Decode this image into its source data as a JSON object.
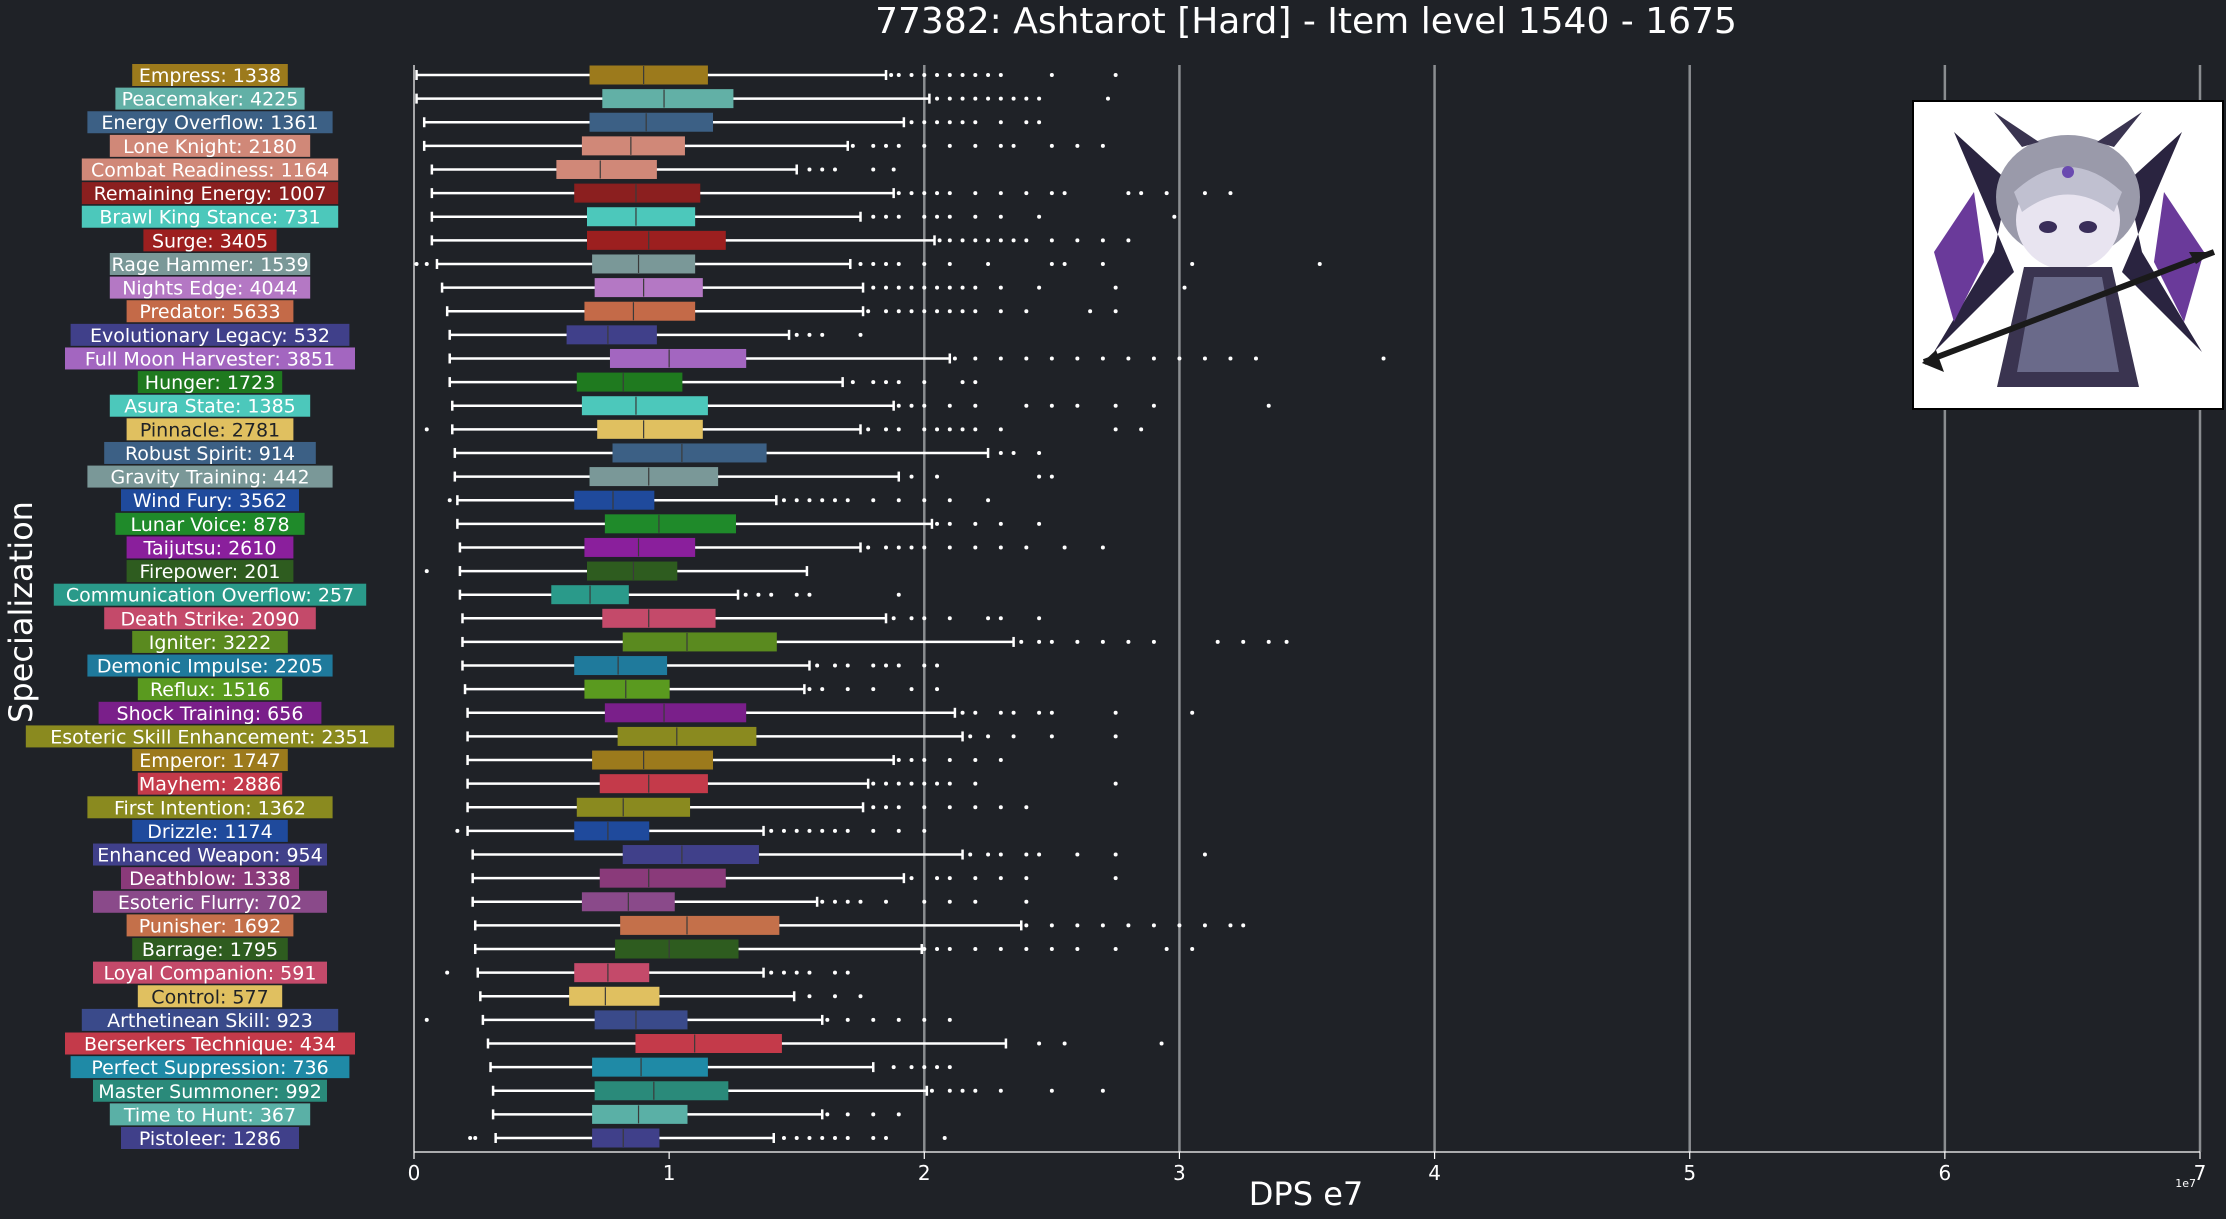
{
  "chart_data": {
    "type": "boxplot",
    "orientation": "horizontal",
    "title": "77382: Ashtarot [Hard] - Item level 1540 - 1675",
    "xlabel": "DPS e7",
    "ylabel": "Specialization",
    "x_scale_offset": "1e7",
    "xlim": [
      0,
      7
    ],
    "xticks": [
      "0",
      "1",
      "2",
      "3",
      "4",
      "5",
      "6",
      "7"
    ],
    "grid": "vertical gridlines at 2,3,4,5,6,7",
    "categories": [
      {
        "label": "Empress: 1338",
        "color": "#9c7a1c",
        "whislo": 0.01,
        "q1": 0.69,
        "med": 0.9,
        "q3": 1.15,
        "whishi": 1.85,
        "fliers": [
          1.87,
          1.9,
          1.95,
          2.0,
          2.05,
          2.1,
          2.15,
          2.2,
          2.25,
          2.3,
          2.5,
          2.75
        ]
      },
      {
        "label": "Peacemaker: 4225",
        "color": "#62b0a6",
        "whislo": 0.01,
        "q1": 0.74,
        "med": 0.98,
        "q3": 1.25,
        "whishi": 2.02,
        "fliers": [
          2.05,
          2.1,
          2.15,
          2.2,
          2.25,
          2.3,
          2.35,
          2.4,
          2.45,
          2.72
        ]
      },
      {
        "label": "Energy Overflow: 1361",
        "color": "#3c6085",
        "whislo": 0.04,
        "q1": 0.69,
        "med": 0.91,
        "q3": 1.17,
        "whishi": 1.92,
        "fliers": [
          1.95,
          2.0,
          2.05,
          2.1,
          2.15,
          2.2,
          2.3,
          2.4,
          2.45
        ]
      },
      {
        "label": "Lone Knight: 2180",
        "color": "#d08878",
        "whislo": 0.04,
        "q1": 0.66,
        "med": 0.85,
        "q3": 1.06,
        "whishi": 1.7,
        "fliers": [
          1.72,
          1.8,
          1.85,
          1.9,
          2.0,
          2.1,
          2.2,
          2.3,
          2.35,
          2.5,
          2.6,
          2.7
        ]
      },
      {
        "label": "Combat Readiness: 1164",
        "color": "#d08878",
        "whislo": 0.07,
        "q1": 0.56,
        "med": 0.73,
        "q3": 0.95,
        "whishi": 1.5,
        "fliers": [
          1.55,
          1.6,
          1.65,
          1.8,
          1.88
        ]
      },
      {
        "label": "Remaining Energy: 1007",
        "color": "#8b1f1f",
        "whislo": 0.07,
        "q1": 0.63,
        "med": 0.87,
        "q3": 1.12,
        "whishi": 1.88,
        "fliers": [
          1.9,
          1.95,
          2.0,
          2.05,
          2.1,
          2.2,
          2.3,
          2.4,
          2.5,
          2.55,
          2.8,
          2.85,
          2.95,
          3.1,
          3.2
        ]
      },
      {
        "label": "Brawl King Stance: 731",
        "color": "#4cc8bb",
        "whislo": 0.07,
        "q1": 0.68,
        "med": 0.87,
        "q3": 1.1,
        "whishi": 1.75,
        "fliers": [
          1.8,
          1.85,
          1.9,
          2.0,
          2.05,
          2.1,
          2.2,
          2.3,
          2.45,
          2.98
        ]
      },
      {
        "label": "Surge: 3405",
        "color": "#9c1f1f",
        "whislo": 0.07,
        "q1": 0.68,
        "med": 0.92,
        "q3": 1.22,
        "whishi": 2.04,
        "fliers": [
          2.06,
          2.1,
          2.15,
          2.2,
          2.25,
          2.3,
          2.35,
          2.4,
          2.5,
          2.6,
          2.7,
          2.8
        ]
      },
      {
        "label": "Rage Hammer: 1539",
        "color": "#7a9898",
        "whislo": 0.09,
        "q1": 0.7,
        "med": 0.88,
        "q3": 1.1,
        "whishi": 1.71,
        "fliers": [
          0.01,
          0.05,
          1.75,
          1.8,
          1.85,
          1.9,
          2.0,
          2.1,
          2.25,
          2.5,
          2.55,
          2.7,
          3.05,
          3.55
        ]
      },
      {
        "label": "Nights Edge: 4044",
        "color": "#b478c4",
        "whislo": 0.11,
        "q1": 0.71,
        "med": 0.9,
        "q3": 1.13,
        "whishi": 1.76,
        "fliers": [
          1.8,
          1.85,
          1.9,
          1.95,
          2.0,
          2.05,
          2.1,
          2.15,
          2.2,
          2.3,
          2.45,
          2.75,
          3.02
        ]
      },
      {
        "label": "Predator: 5633",
        "color": "#c46a48",
        "whislo": 0.13,
        "q1": 0.67,
        "med": 0.86,
        "q3": 1.1,
        "whishi": 1.76,
        "fliers": [
          1.78,
          1.85,
          1.9,
          1.95,
          2.0,
          2.05,
          2.1,
          2.15,
          2.2,
          2.3,
          2.4,
          2.65,
          2.75
        ]
      },
      {
        "label": "Evolutionary Legacy: 532",
        "color": "#40408a",
        "whislo": 0.14,
        "q1": 0.6,
        "med": 0.76,
        "q3": 0.95,
        "whishi": 1.47,
        "fliers": [
          1.5,
          1.55,
          1.6,
          1.75
        ]
      },
      {
        "label": "Full Moon Harvester: 3851",
        "color": "#a366c0",
        "whislo": 0.14,
        "q1": 0.77,
        "med": 1.0,
        "q3": 1.3,
        "whishi": 2.1,
        "fliers": [
          2.12,
          2.2,
          2.3,
          2.4,
          2.5,
          2.6,
          2.7,
          2.8,
          2.9,
          3.0,
          3.1,
          3.2,
          3.3,
          3.8
        ]
      },
      {
        "label": "Hunger: 1723",
        "color": "#1f7a1f",
        "whislo": 0.14,
        "q1": 0.64,
        "med": 0.82,
        "q3": 1.05,
        "whishi": 1.68,
        "fliers": [
          1.72,
          1.8,
          1.85,
          1.9,
          2.0,
          2.15,
          2.2
        ]
      },
      {
        "label": "Asura State: 1385",
        "color": "#4cc8bb",
        "whislo": 0.15,
        "q1": 0.66,
        "med": 0.87,
        "q3": 1.15,
        "whishi": 1.88,
        "fliers": [
          1.9,
          1.95,
          2.0,
          2.1,
          2.2,
          2.4,
          2.5,
          2.6,
          2.75,
          2.9,
          3.35
        ]
      },
      {
        "label": "Pinnacle: 2781",
        "color": "#e0c060",
        "whislo": 0.15,
        "q1": 0.72,
        "med": 0.9,
        "q3": 1.13,
        "whishi": 1.75,
        "fliers": [
          0.05,
          1.78,
          1.85,
          1.9,
          2.0,
          2.05,
          2.1,
          2.15,
          2.2,
          2.3,
          2.75,
          2.85
        ]
      },
      {
        "label": "Robust Spirit: 914",
        "color": "#3c6085",
        "whislo": 0.16,
        "q1": 0.78,
        "med": 1.05,
        "q3": 1.38,
        "whishi": 2.25,
        "fliers": [
          2.3,
          2.35,
          2.45
        ]
      },
      {
        "label": "Gravity Training: 442",
        "color": "#7a9898",
        "whislo": 0.16,
        "q1": 0.69,
        "med": 0.92,
        "q3": 1.19,
        "whishi": 1.9,
        "fliers": [
          1.95,
          2.05,
          2.45,
          2.5
        ]
      },
      {
        "label": "Wind Fury: 3562",
        "color": "#1f4a9c",
        "whislo": 0.17,
        "q1": 0.63,
        "med": 0.78,
        "q3": 0.94,
        "whishi": 1.42,
        "fliers": [
          0.14,
          1.45,
          1.5,
          1.55,
          1.6,
          1.65,
          1.7,
          1.8,
          1.9,
          2.0,
          2.1,
          2.25
        ]
      },
      {
        "label": "Lunar Voice: 878",
        "color": "#1f8a2a",
        "whislo": 0.17,
        "q1": 0.75,
        "med": 0.96,
        "q3": 1.26,
        "whishi": 2.03,
        "fliers": [
          2.05,
          2.1,
          2.2,
          2.3,
          2.45
        ]
      },
      {
        "label": "Taijutsu: 2610",
        "color": "#8a1f9c",
        "whislo": 0.18,
        "q1": 0.67,
        "med": 0.88,
        "q3": 1.1,
        "whishi": 1.75,
        "fliers": [
          1.78,
          1.85,
          1.9,
          1.95,
          2.0,
          2.1,
          2.2,
          2.3,
          2.4,
          2.55,
          2.7
        ]
      },
      {
        "label": "Firepower: 201",
        "color": "#2e5c1f",
        "whislo": 0.18,
        "q1": 0.68,
        "med": 0.86,
        "q3": 1.03,
        "whishi": 1.54,
        "fliers": [
          0.05
        ]
      },
      {
        "label": "Communication Overflow: 257",
        "color": "#2a9a8a",
        "whislo": 0.18,
        "q1": 0.54,
        "med": 0.69,
        "q3": 0.84,
        "whishi": 1.27,
        "fliers": [
          1.3,
          1.35,
          1.4,
          1.5,
          1.55,
          1.9
        ]
      },
      {
        "label": "Death Strike: 2090",
        "color": "#c44a6a",
        "whislo": 0.19,
        "q1": 0.74,
        "med": 0.92,
        "q3": 1.18,
        "whishi": 1.85,
        "fliers": [
          1.88,
          1.95,
          2.0,
          2.1,
          2.25,
          2.3,
          2.45
        ]
      },
      {
        "label": "Igniter: 3222",
        "color": "#5a8a1f",
        "whislo": 0.19,
        "q1": 0.82,
        "med": 1.07,
        "q3": 1.42,
        "whishi": 2.35,
        "fliers": [
          2.38,
          2.45,
          2.5,
          2.6,
          2.7,
          2.8,
          2.9,
          3.15,
          3.25,
          3.35,
          3.42
        ]
      },
      {
        "label": "Demonic Impulse: 2205",
        "color": "#1f7a9c",
        "whislo": 0.19,
        "q1": 0.63,
        "med": 0.8,
        "q3": 0.99,
        "whishi": 1.55,
        "fliers": [
          1.58,
          1.65,
          1.7,
          1.8,
          1.85,
          1.9,
          2.0,
          2.05
        ]
      },
      {
        "label": "Reflux: 1516",
        "color": "#5a9a1f",
        "whislo": 0.2,
        "q1": 0.67,
        "med": 0.83,
        "q3": 1.0,
        "whishi": 1.53,
        "fliers": [
          1.55,
          1.6,
          1.7,
          1.8,
          1.95,
          2.05
        ]
      },
      {
        "label": "Shock Training: 656",
        "color": "#7a1f8a",
        "whislo": 0.21,
        "q1": 0.75,
        "med": 0.98,
        "q3": 1.3,
        "whishi": 2.12,
        "fliers": [
          2.15,
          2.2,
          2.3,
          2.35,
          2.45,
          2.5,
          2.75,
          3.05
        ]
      },
      {
        "label": "Esoteric Skill Enhancement: 2351",
        "color": "#8a8a1f",
        "whislo": 0.21,
        "q1": 0.8,
        "med": 1.03,
        "q3": 1.34,
        "whishi": 2.15,
        "fliers": [
          2.18,
          2.25,
          2.35,
          2.5,
          2.75
        ]
      },
      {
        "label": "Emperor: 1747",
        "color": "#9c7a1c",
        "whislo": 0.21,
        "q1": 0.7,
        "med": 0.9,
        "q3": 1.17,
        "whishi": 1.88,
        "fliers": [
          1.9,
          1.95,
          2.0,
          2.1,
          2.2,
          2.3
        ]
      },
      {
        "label": "Mayhem: 2886",
        "color": "#c43a4a",
        "whislo": 0.21,
        "q1": 0.73,
        "med": 0.92,
        "q3": 1.15,
        "whishi": 1.78,
        "fliers": [
          1.8,
          1.85,
          1.9,
          1.95,
          2.0,
          2.05,
          2.1,
          2.2,
          2.75
        ]
      },
      {
        "label": "First Intention: 1362",
        "color": "#8a8a1f",
        "whislo": 0.21,
        "q1": 0.64,
        "med": 0.82,
        "q3": 1.08,
        "whishi": 1.76,
        "fliers": [
          1.8,
          1.85,
          1.9,
          2.0,
          2.1,
          2.2,
          2.3,
          2.4
        ]
      },
      {
        "label": "Drizzle: 1174",
        "color": "#1f4a9c",
        "whislo": 0.21,
        "q1": 0.63,
        "med": 0.76,
        "q3": 0.92,
        "whishi": 1.37,
        "fliers": [
          0.17,
          1.4,
          1.45,
          1.5,
          1.55,
          1.6,
          1.65,
          1.7,
          1.8,
          1.9,
          2.0
        ]
      },
      {
        "label": "Enhanced Weapon: 954",
        "color": "#40408a",
        "whislo": 0.23,
        "q1": 0.82,
        "med": 1.05,
        "q3": 1.35,
        "whishi": 2.15,
        "fliers": [
          2.18,
          2.25,
          2.3,
          2.4,
          2.45,
          2.6,
          2.75,
          3.1
        ]
      },
      {
        "label": "Deathblow: 1338",
        "color": "#8a3a7a",
        "whislo": 0.23,
        "q1": 0.73,
        "med": 0.92,
        "q3": 1.22,
        "whishi": 1.92,
        "fliers": [
          1.95,
          2.05,
          2.1,
          2.2,
          2.3,
          2.4,
          2.75
        ]
      },
      {
        "label": "Esoteric Flurry: 702",
        "color": "#8a4a8a",
        "whislo": 0.23,
        "q1": 0.66,
        "med": 0.84,
        "q3": 1.02,
        "whishi": 1.58,
        "fliers": [
          1.6,
          1.65,
          1.7,
          1.75,
          1.85,
          2.0,
          2.1,
          2.2,
          2.4
        ]
      },
      {
        "label": "Punisher: 1692",
        "color": "#c4704a",
        "whislo": 0.24,
        "q1": 0.81,
        "med": 1.07,
        "q3": 1.43,
        "whishi": 2.38,
        "fliers": [
          2.4,
          2.5,
          2.6,
          2.7,
          2.8,
          2.9,
          3.0,
          3.1,
          3.2,
          3.25
        ]
      },
      {
        "label": "Barrage: 1795",
        "color": "#2e5c1f",
        "whislo": 0.24,
        "q1": 0.79,
        "med": 1.0,
        "q3": 1.27,
        "whishi": 1.99,
        "fliers": [
          2.0,
          2.05,
          2.1,
          2.2,
          2.3,
          2.4,
          2.5,
          2.6,
          2.75,
          2.95,
          3.05
        ]
      },
      {
        "label": "Loyal Companion: 591",
        "color": "#c44a6a",
        "whislo": 0.25,
        "q1": 0.63,
        "med": 0.76,
        "q3": 0.92,
        "whishi": 1.37,
        "fliers": [
          0.13,
          1.4,
          1.45,
          1.5,
          1.55,
          1.65,
          1.7
        ]
      },
      {
        "label": "Control: 577",
        "color": "#e0c060",
        "whislo": 0.26,
        "q1": 0.61,
        "med": 0.75,
        "q3": 0.96,
        "whishi": 1.49,
        "fliers": [
          1.55,
          1.65,
          1.75
        ]
      },
      {
        "label": "Arthetinean Skill: 923",
        "color": "#3a4a8a",
        "whislo": 0.27,
        "q1": 0.71,
        "med": 0.87,
        "q3": 1.07,
        "whishi": 1.6,
        "fliers": [
          0.05,
          1.62,
          1.7,
          1.8,
          1.9,
          2.0,
          2.1
        ]
      },
      {
        "label": "Berserkers Technique: 434",
        "color": "#c43a4a",
        "whislo": 0.29,
        "q1": 0.87,
        "med": 1.1,
        "q3": 1.44,
        "whishi": 2.32,
        "fliers": [
          2.45,
          2.55,
          2.93
        ]
      },
      {
        "label": "Perfect Suppression: 736",
        "color": "#1f8aa6",
        "whislo": 0.3,
        "q1": 0.7,
        "med": 0.89,
        "q3": 1.15,
        "whishi": 1.8,
        "fliers": [
          1.88,
          1.95,
          2.0,
          2.05,
          2.1
        ]
      },
      {
        "label": "Master Summoner: 992",
        "color": "#2a8a7a",
        "whislo": 0.31,
        "q1": 0.71,
        "med": 0.94,
        "q3": 1.23,
        "whishi": 2.01,
        "fliers": [
          2.03,
          2.1,
          2.15,
          2.2,
          2.3,
          2.5,
          2.7
        ]
      },
      {
        "label": "Time to Hunt: 367",
        "color": "#5ab0a6",
        "whislo": 0.31,
        "q1": 0.7,
        "med": 0.88,
        "q3": 1.07,
        "whishi": 1.6,
        "fliers": [
          1.62,
          1.7,
          1.8,
          1.9
        ]
      },
      {
        "label": "Pistoleer: 1286",
        "color": "#40408a",
        "whislo": 0.32,
        "q1": 0.7,
        "med": 0.82,
        "q3": 0.96,
        "whishi": 1.41,
        "fliers": [
          0.22,
          0.24,
          1.45,
          1.5,
          1.55,
          1.6,
          1.65,
          1.7,
          1.8,
          1.85,
          2.08
        ]
      }
    ]
  }
}
